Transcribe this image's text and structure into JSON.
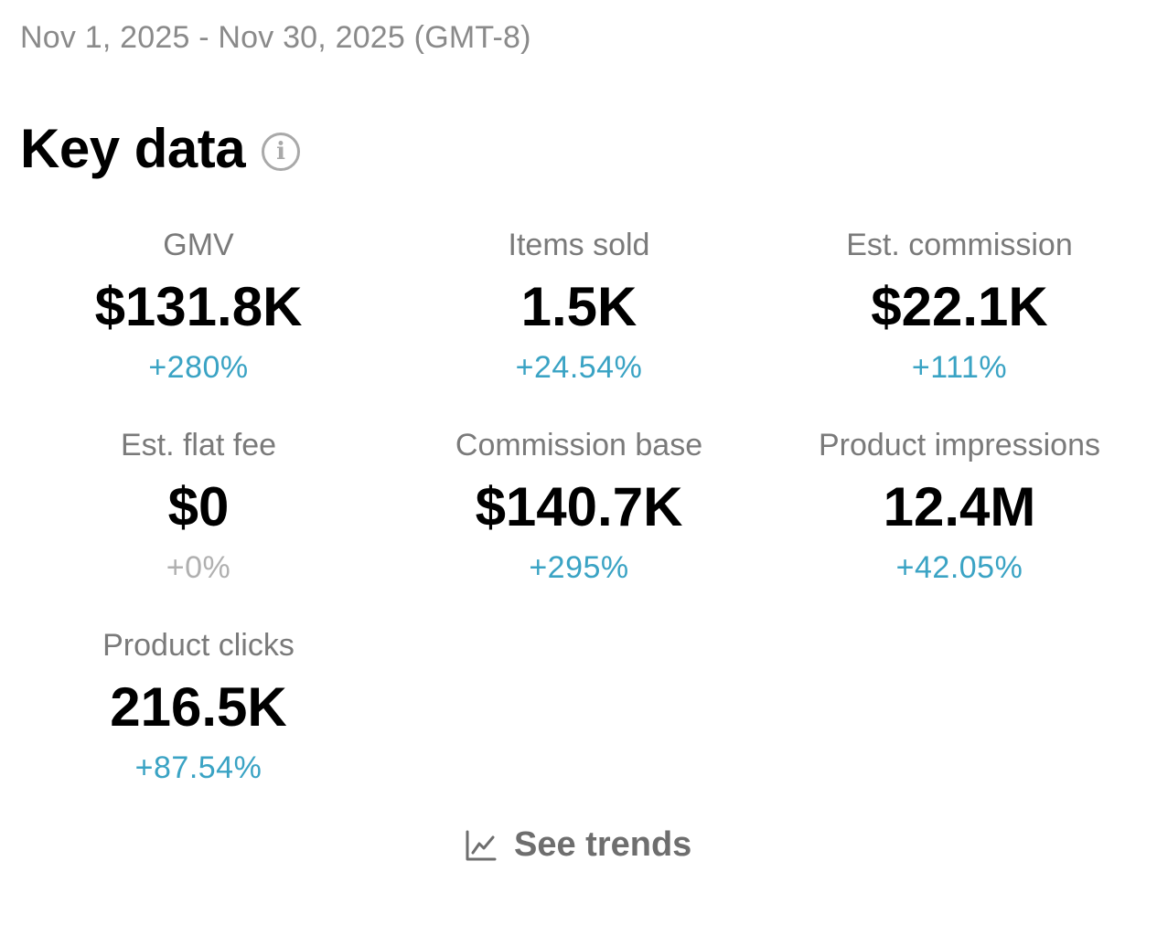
{
  "header": {
    "date_range": "Nov 1, 2025 - Nov 30, 2025 (GMT-8)",
    "title": "Key data",
    "info_icon": "info-icon"
  },
  "metrics": [
    {
      "label": "GMV",
      "value": "$131.8K",
      "change": "+280%",
      "trend": "up"
    },
    {
      "label": "Items sold",
      "value": "1.5K",
      "change": "+24.54%",
      "trend": "up"
    },
    {
      "label": "Est. commission",
      "value": "$22.1K",
      "change": "+111%",
      "trend": "up"
    },
    {
      "label": "Est. flat fee",
      "value": "$0",
      "change": "+0%",
      "trend": "neutral"
    },
    {
      "label": "Commission base",
      "value": "$140.7K",
      "change": "+295%",
      "trend": "up"
    },
    {
      "label": "Product impressions",
      "value": "12.4M",
      "change": "+42.05%",
      "trend": "up"
    },
    {
      "label": "Product clicks",
      "value": "216.5K",
      "change": "+87.54%",
      "trend": "up"
    }
  ],
  "footer": {
    "see_trends_label": "See trends",
    "see_trends_icon": "line-chart-icon"
  },
  "colors": {
    "positive": "#3aa3c4",
    "neutral": "#b0b0b0",
    "label": "#7a7a7a",
    "value": "#000000"
  }
}
